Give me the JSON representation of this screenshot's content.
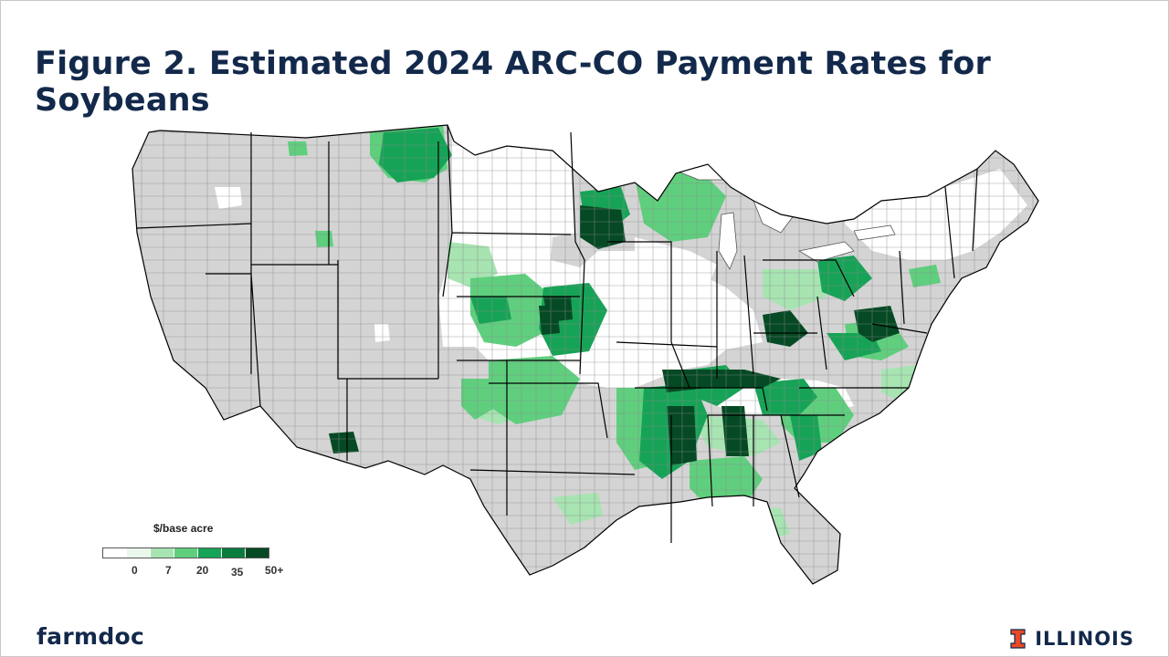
{
  "slide": {
    "title": "Figure 2. Estimated 2024 ARC-CO Payment Rates for Soybeans"
  },
  "colors": {
    "title": "#13294b",
    "no_data": "#d4d4d4",
    "county_border": "#8c8c8c",
    "state_border": "#000000",
    "scale": [
      "#ffffff",
      "#eaf8ec",
      "#a7e4b2",
      "#5fcf7e",
      "#17a357",
      "#0a7c3e",
      "#054a24"
    ]
  },
  "legend": {
    "title": "$/base acre",
    "labels": [
      "0",
      "7",
      "20",
      "35",
      "50+"
    ]
  },
  "map": {
    "subject": "2024 ARC-CO soybean payment rates by county, contiguous United States"
  },
  "footer": {
    "left_brand": "farmdoc",
    "right_brand": "ILLINOIS",
    "right_logo_icon": "block-i-logo"
  }
}
